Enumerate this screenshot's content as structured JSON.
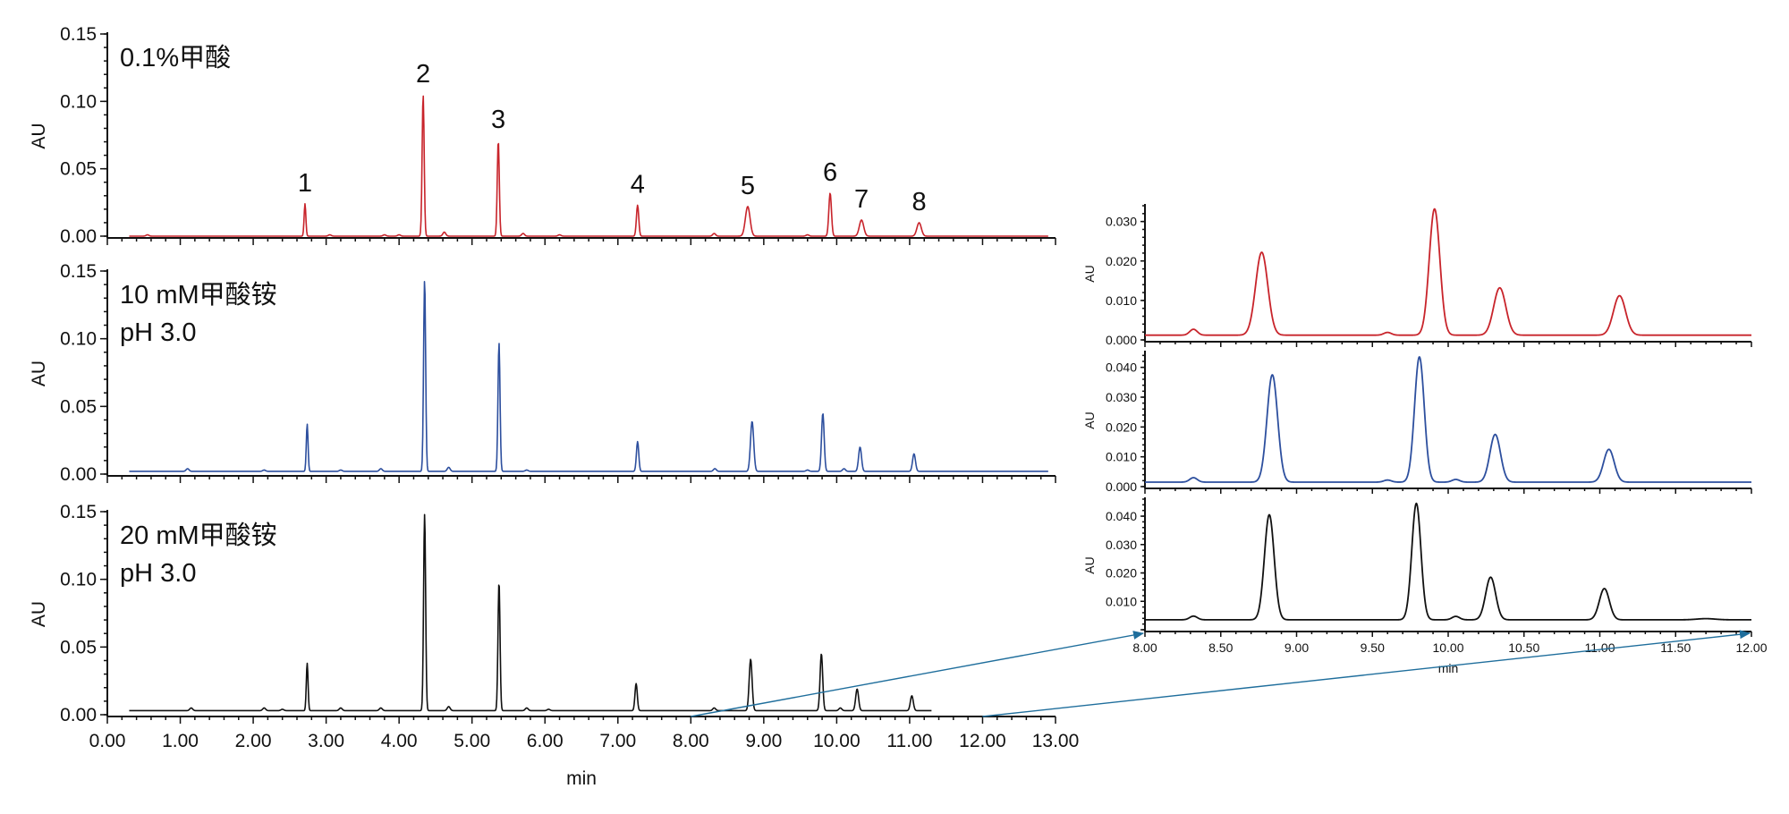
{
  "chart_data": [
    {
      "type": "line",
      "id": "main",
      "xlabel": "min",
      "ylabel": "AU",
      "xlim": [
        0,
        13
      ],
      "ylim": [
        0,
        0.15
      ],
      "x_ticks": [
        "0.00",
        "1.00",
        "2.00",
        "3.00",
        "4.00",
        "5.00",
        "6.00",
        "7.00",
        "8.00",
        "9.00",
        "10.00",
        "11.00",
        "12.00",
        "13.00"
      ],
      "y_ticks": [
        "0.00",
        "0.05",
        "0.10",
        "0.15"
      ],
      "grid": false,
      "panels": [
        {
          "name": "0.1%甲酸",
          "subtitle": "",
          "color": "#c8242b",
          "x_end": 12.9,
          "baseline": 0.0,
          "peaks": [
            [
              2.71,
              0.024,
              0.012
            ],
            [
              4.33,
              0.105,
              0.014
            ],
            [
              5.36,
              0.071,
              0.014
            ],
            [
              7.27,
              0.023,
              0.016
            ],
            [
              8.78,
              0.022,
              0.032
            ],
            [
              9.91,
              0.032,
              0.018
            ],
            [
              10.34,
              0.012,
              0.03
            ],
            [
              11.13,
              0.01,
              0.03
            ]
          ],
          "minor_peaks": [
            [
              0.55,
              0.001,
              0.02
            ],
            [
              3.05,
              0.001,
              0.02
            ],
            [
              3.8,
              0.001,
              0.02
            ],
            [
              4.0,
              0.001,
              0.02
            ],
            [
              4.62,
              0.003,
              0.02
            ],
            [
              5.7,
              0.002,
              0.02
            ],
            [
              6.2,
              0.001,
              0.02
            ],
            [
              8.32,
              0.002,
              0.02
            ],
            [
              9.6,
              0.001,
              0.02
            ]
          ],
          "peak_labels": [
            {
              "text": "1",
              "x": 2.71,
              "y": 0.024
            },
            {
              "text": "2",
              "x": 4.33,
              "y": 0.105
            },
            {
              "text": "3",
              "x": 5.36,
              "y": 0.071
            },
            {
              "text": "4",
              "x": 7.27,
              "y": 0.023
            },
            {
              "text": "5",
              "x": 8.78,
              "y": 0.022
            },
            {
              "text": "6",
              "x": 9.91,
              "y": 0.032
            },
            {
              "text": "7",
              "x": 10.34,
              "y": 0.012
            },
            {
              "text": "8",
              "x": 11.13,
              "y": 0.01
            }
          ]
        },
        {
          "name": "10 mM甲酸铵",
          "subtitle": "pH 3.0",
          "color": "#2d4f9e",
          "x_end": 12.9,
          "baseline": 0.002,
          "peaks": [
            [
              2.74,
              0.035,
              0.012
            ],
            [
              4.35,
              0.142,
              0.014
            ],
            [
              5.37,
              0.095,
              0.014
            ],
            [
              7.27,
              0.022,
              0.016
            ],
            [
              8.84,
              0.037,
              0.022
            ],
            [
              9.81,
              0.043,
              0.018
            ],
            [
              10.32,
              0.018,
              0.02
            ],
            [
              11.06,
              0.013,
              0.02
            ]
          ],
          "minor_peaks": [
            [
              1.1,
              0.002,
              0.02
            ],
            [
              2.15,
              0.001,
              0.02
            ],
            [
              3.2,
              0.001,
              0.02
            ],
            [
              3.75,
              0.002,
              0.02
            ],
            [
              4.68,
              0.003,
              0.02
            ],
            [
              5.75,
              0.001,
              0.02
            ],
            [
              8.33,
              0.002,
              0.02
            ],
            [
              9.6,
              0.001,
              0.02
            ],
            [
              10.1,
              0.002,
              0.02
            ]
          ],
          "peak_labels": []
        },
        {
          "name": "20 mM甲酸铵",
          "subtitle": "pH 3.0",
          "color": "#111111",
          "x_end": 11.3,
          "baseline": 0.003,
          "peaks": [
            [
              2.74,
              0.035,
              0.012
            ],
            [
              4.35,
              0.145,
              0.014
            ],
            [
              5.37,
              0.095,
              0.014
            ],
            [
              7.25,
              0.02,
              0.016
            ],
            [
              8.82,
              0.038,
              0.02
            ],
            [
              9.79,
              0.042,
              0.018
            ],
            [
              10.28,
              0.016,
              0.02
            ],
            [
              11.03,
              0.011,
              0.02
            ]
          ],
          "minor_peaks": [
            [
              1.15,
              0.002,
              0.02
            ],
            [
              2.15,
              0.002,
              0.02
            ],
            [
              2.4,
              0.001,
              0.02
            ],
            [
              3.2,
              0.002,
              0.02
            ],
            [
              3.75,
              0.002,
              0.02
            ],
            [
              4.68,
              0.003,
              0.02
            ],
            [
              5.75,
              0.002,
              0.02
            ],
            [
              6.05,
              0.001,
              0.02
            ],
            [
              8.32,
              0.002,
              0.02
            ],
            [
              10.05,
              0.002,
              0.02
            ]
          ],
          "peak_labels": []
        }
      ]
    },
    {
      "type": "line",
      "id": "inset",
      "xlabel": "min",
      "ylabel": "AU",
      "xlim": [
        8.0,
        12.0
      ],
      "x_ticks": [
        "8.00",
        "8.50",
        "9.00",
        "9.50",
        "10.00",
        "10.50",
        "11.00",
        "11.50",
        "12.00"
      ],
      "zoom_link": {
        "from_x": [
          8.0,
          12.0
        ]
      },
      "grid": false,
      "panels": [
        {
          "color": "#c8242b",
          "ylim": [
            0,
            0.034
          ],
          "y_ticks": [
            "0.000",
            "0.010",
            "0.020",
            "0.030"
          ],
          "baseline": 0.0012,
          "peaks": [
            [
              8.77,
              0.021,
              0.04
            ],
            [
              9.91,
              0.032,
              0.035
            ],
            [
              10.34,
              0.012,
              0.04
            ],
            [
              11.13,
              0.01,
              0.04
            ]
          ],
          "minor_peaks": [
            [
              8.32,
              0.0015,
              0.025
            ],
            [
              9.6,
              0.0007,
              0.025
            ]
          ]
        },
        {
          "color": "#2d4f9e",
          "ylim": [
            0,
            0.045
          ],
          "y_ticks": [
            "0.000",
            "0.010",
            "0.020",
            "0.030",
            "0.040"
          ],
          "baseline": 0.0015,
          "peaks": [
            [
              8.84,
              0.036,
              0.035
            ],
            [
              9.81,
              0.042,
              0.032
            ],
            [
              10.31,
              0.016,
              0.035
            ],
            [
              11.06,
              0.011,
              0.035
            ]
          ],
          "minor_peaks": [
            [
              8.32,
              0.0015,
              0.025
            ],
            [
              9.6,
              0.0007,
              0.025
            ],
            [
              10.05,
              0.0009,
              0.025
            ]
          ]
        },
        {
          "color": "#111111",
          "ylim": [
            0,
            0.046
          ],
          "y_ticks": [
            "",
            "0.010",
            "0.020",
            "0.030",
            "0.040"
          ],
          "baseline": 0.0035,
          "peaks": [
            [
              8.82,
              0.037,
              0.032
            ],
            [
              9.79,
              0.041,
              0.03
            ],
            [
              10.28,
              0.015,
              0.033
            ],
            [
              11.03,
              0.011,
              0.033
            ]
          ],
          "minor_peaks": [
            [
              8.32,
              0.0013,
              0.025
            ],
            [
              10.05,
              0.0012,
              0.025
            ],
            [
              11.7,
              0.0004,
              0.06
            ]
          ]
        }
      ]
    }
  ]
}
